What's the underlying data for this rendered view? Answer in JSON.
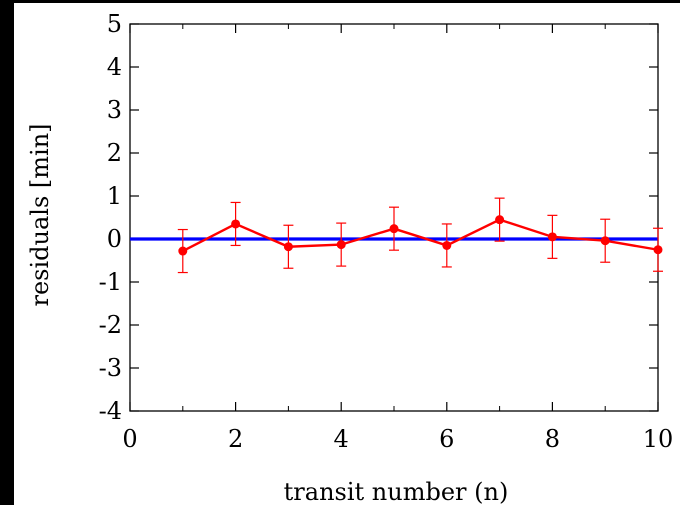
{
  "chart_data": {
    "type": "line",
    "xlabel": "transit number (n)",
    "ylabel": "residuals [min]",
    "xlim": [
      0,
      10
    ],
    "ylim": [
      -4,
      5
    ],
    "xticks": [
      0,
      2,
      4,
      6,
      8,
      10
    ],
    "yticks": [
      -4,
      -3,
      -2,
      -1,
      0,
      1,
      2,
      3,
      4,
      5
    ],
    "grid": false,
    "series": [
      {
        "type": "line-errorbar",
        "color": "#ff0000",
        "x": [
          1,
          2,
          3,
          4,
          5,
          6,
          7,
          8,
          9,
          10
        ],
        "y": [
          -0.28,
          0.35,
          -0.18,
          -0.13,
          0.24,
          -0.15,
          0.45,
          0.05,
          -0.04,
          -0.25
        ],
        "yerr": [
          0.5,
          0.5,
          0.5,
          0.5,
          0.5,
          0.5,
          0.5,
          0.5,
          0.5,
          0.5
        ]
      },
      {
        "type": "reference-line",
        "color": "#0000ff",
        "y": 0
      }
    ]
  }
}
